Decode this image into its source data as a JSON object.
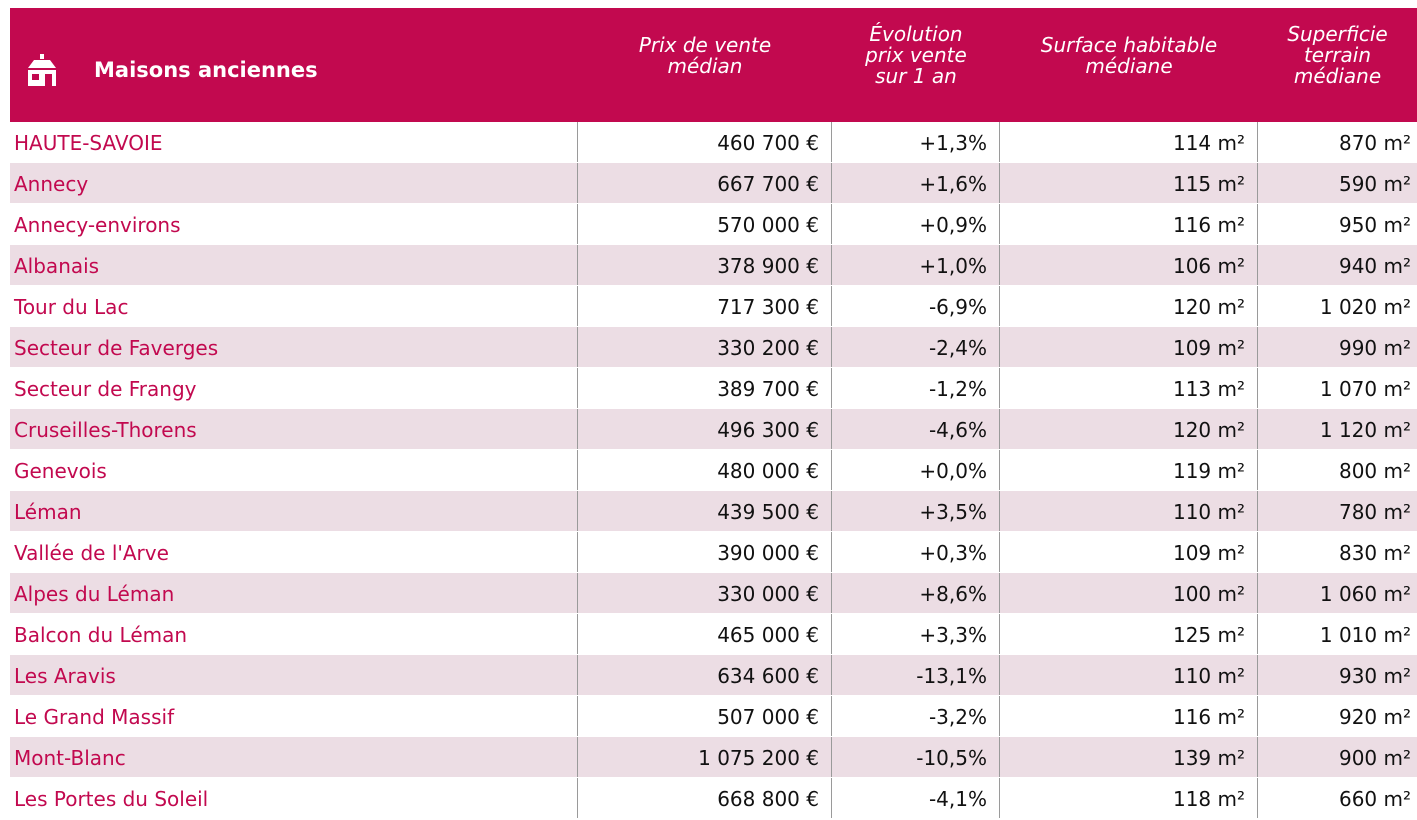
{
  "header": {
    "title": "Maisons anciennes",
    "columns": [
      [
        "Prix de vente",
        "médian"
      ],
      [
        "Évolution",
        "prix vente",
        "sur 1 an"
      ],
      [
        "Surface habitable",
        "médiane"
      ],
      [
        "Superficie",
        "terrain",
        "médiane"
      ]
    ]
  },
  "table": {
    "rows": [
      [
        "HAUTE-SAVOIE",
        "460 700 €",
        "+1,3%",
        "114 m²",
        "870 m²"
      ],
      [
        "Annecy",
        "667 700 €",
        "+1,6%",
        "115 m²",
        "590 m²"
      ],
      [
        "Annecy-environs",
        "570 000 €",
        "+0,9%",
        "116 m²",
        "950 m²"
      ],
      [
        "Albanais",
        "378 900 €",
        "+1,0%",
        "106 m²",
        "940 m²"
      ],
      [
        "Tour du Lac",
        "717 300 €",
        "-6,9%",
        "120 m²",
        "1 020 m²"
      ],
      [
        "Secteur de Faverges",
        "330 200 €",
        "-2,4%",
        "109 m²",
        "990 m²"
      ],
      [
        "Secteur de Frangy",
        "389 700 €",
        "-1,2%",
        "113 m²",
        "1 070 m²"
      ],
      [
        "Cruseilles-Thorens",
        "496 300 €",
        "-4,6%",
        "120 m²",
        "1 120 m²"
      ],
      [
        "Genevois",
        "480 000 €",
        "+0,0%",
        "119 m²",
        "800 m²"
      ],
      [
        "Léman",
        "439 500 €",
        "+3,5%",
        "110 m²",
        "780 m²"
      ],
      [
        "Vallée de l'Arve",
        "390 000 €",
        "+0,3%",
        "109 m²",
        "830 m²"
      ],
      [
        "Alpes du Léman",
        "330 000 €",
        "+8,6%",
        "100 m²",
        "1 060 m²"
      ],
      [
        "Balcon du Léman",
        "465 000 €",
        "+3,3%",
        "125 m²",
        "1 010 m²"
      ],
      [
        "Les Aravis",
        "634 600 €",
        "-13,1%",
        "110 m²",
        "930 m²"
      ],
      [
        "Le Grand Massif",
        "507 000 €",
        "-3,2%",
        "116 m²",
        "920 m²"
      ],
      [
        "Mont-Blanc",
        "1 075 200 €",
        "-10,5%",
        "139 m²",
        "900 m²"
      ],
      [
        "Les Portes du Soleil",
        "668 800 €",
        "-4,1%",
        "118 m²",
        "660 m²"
      ]
    ]
  }
}
